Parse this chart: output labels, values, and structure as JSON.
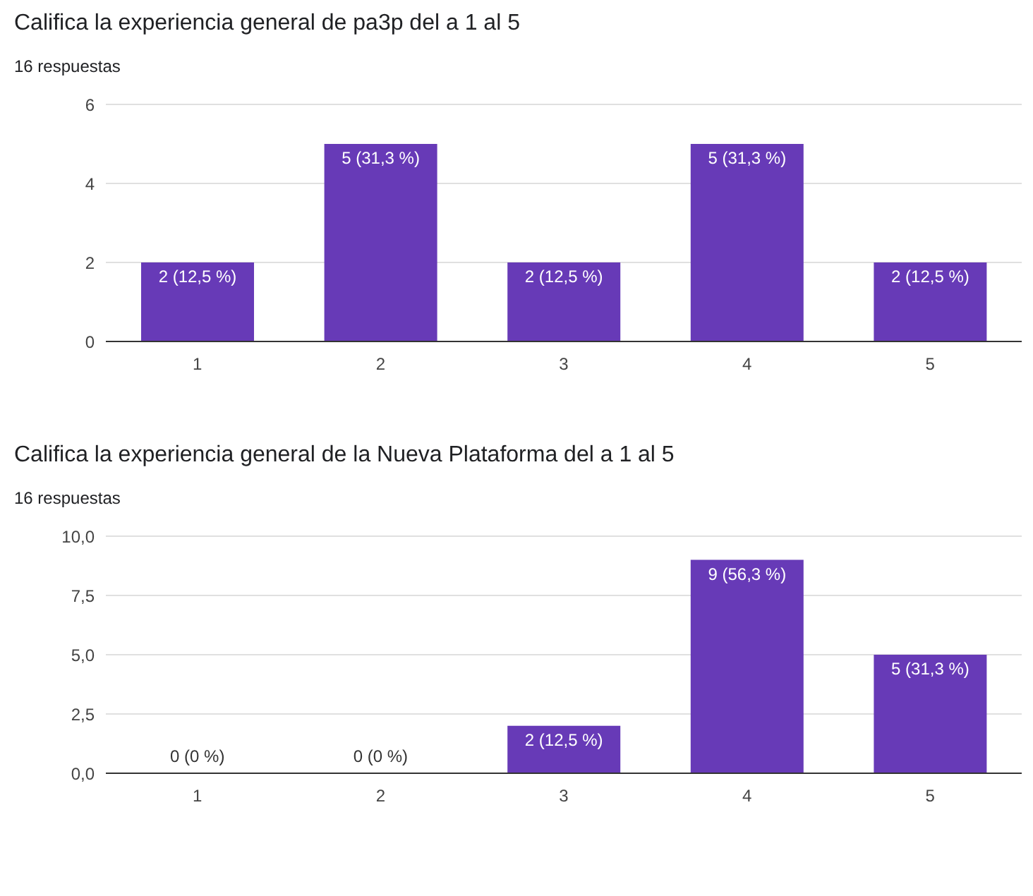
{
  "chart_data": [
    {
      "type": "bar",
      "title": "Califica la experiencia general de pa3p del a 1 al 5",
      "subtitle": "16 respuestas",
      "categories": [
        "1",
        "2",
        "3",
        "4",
        "5"
      ],
      "values": [
        2,
        5,
        2,
        5,
        2
      ],
      "color": "#673ab7",
      "value_labels": [
        "2 (12,5 %)",
        "5 (31,3 %)",
        "2 (12,5 %)",
        "5 (31,3 %)",
        "2 (12,5 %)"
      ],
      "ylim": [
        0,
        6
      ],
      "yticks": [
        0,
        2,
        4,
        6
      ],
      "grid": "y",
      "legend": false
    },
    {
      "type": "bar",
      "title": "Califica la experiencia general de la Nueva Plataforma del a 1 al 5",
      "subtitle": "16 respuestas",
      "categories": [
        "1",
        "2",
        "3",
        "4",
        "5"
      ],
      "values": [
        0,
        0,
        2,
        9,
        5
      ],
      "color": "#673ab7",
      "value_labels": [
        "0 (0 %)",
        "0 (0 %)",
        "2 (12,5 %)",
        "9 (56,3 %)",
        "5 (31,3 %)"
      ],
      "ylim": [
        0,
        10
      ],
      "yticks": [
        {
          "value": 0,
          "label": "0,0"
        },
        {
          "value": 2.5,
          "label": "2,5"
        },
        {
          "value": 5,
          "label": "5,0"
        },
        {
          "value": 7.5,
          "label": "7,5"
        },
        {
          "value": 10,
          "label": "10,0"
        }
      ],
      "grid": "y",
      "legend": false
    }
  ]
}
